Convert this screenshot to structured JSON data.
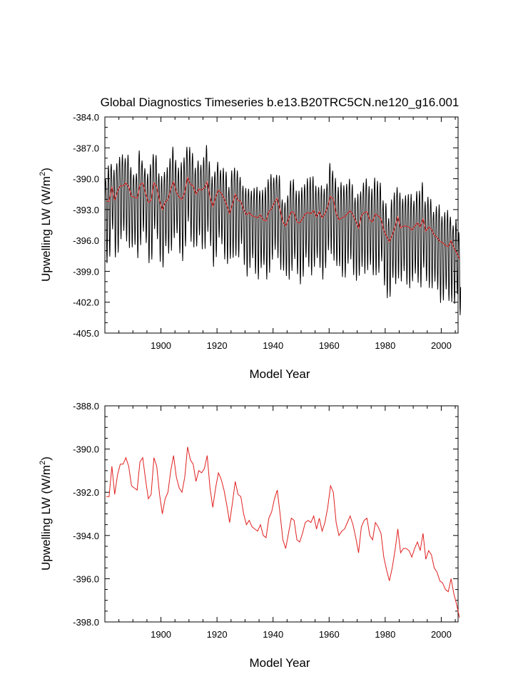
{
  "title": "Global Diagnostics Timeseries b.e13.B20TRC5CN.ne120_g16.001",
  "chart_data": [
    {
      "type": "line",
      "xlabel": "Model Year",
      "ylabel": "Upwelling LW (W/m",
      "ylabel_sup": "2",
      "ylabel_close": ")",
      "xlim": [
        1880,
        2006
      ],
      "ylim": [
        -405.0,
        -384.0
      ],
      "xticks": [
        1900,
        1920,
        1940,
        1960,
        1980,
        2000
      ],
      "yticks": [
        "-405.0",
        "-402.0",
        "-399.0",
        "-396.0",
        "-393.0",
        "-390.0",
        "-387.0",
        "-384.0"
      ],
      "yticks_num": [
        -405,
        -402,
        -399,
        -396,
        -393,
        -390,
        -387,
        -384
      ],
      "series": [
        {
          "kind": "monthly",
          "color": "#000000",
          "annual_mean_ref": "annual",
          "amplitude_high": 3.2,
          "amplitude_low": 5.0
        },
        {
          "kind": "annual",
          "color": "#e0201f"
        }
      ]
    },
    {
      "type": "line",
      "xlabel": "Model Year",
      "ylabel": "Upwelling LW (W/m",
      "ylabel_sup": "2",
      "ylabel_close": ")",
      "xlim": [
        1880,
        2006
      ],
      "ylim": [
        -398.0,
        -388.0
      ],
      "xticks": [
        1900,
        1920,
        1940,
        1960,
        1980,
        2000
      ],
      "yticks": [
        "-398.0",
        "-396.0",
        "-394.0",
        "-392.0",
        "-390.0",
        "-388.0"
      ],
      "yticks_num": [
        -398,
        -396,
        -394,
        -392,
        -390,
        -388
      ],
      "series": [
        {
          "kind": "annual",
          "color": "#e0201f"
        }
      ]
    }
  ],
  "annual": {
    "years_start": 1880,
    "values": [
      -392.2,
      -392.2,
      -390.8,
      -392.1,
      -391.2,
      -390.7,
      -390.7,
      -390.4,
      -390.8,
      -391.7,
      -391.8,
      -391.9,
      -390.6,
      -390.4,
      -391.4,
      -392.3,
      -392.1,
      -390.4,
      -390.8,
      -392.1,
      -393.0,
      -392.3,
      -392.0,
      -391.0,
      -390.3,
      -391.3,
      -391.8,
      -392.0,
      -391.3,
      -389.9,
      -390.5,
      -390.7,
      -391.5,
      -391.0,
      -391.1,
      -390.9,
      -390.3,
      -391.8,
      -392.7,
      -391.8,
      -391.1,
      -391.4,
      -391.9,
      -392.6,
      -393.4,
      -392.5,
      -391.5,
      -392.1,
      -392.2,
      -393.0,
      -393.5,
      -393.3,
      -393.6,
      -393.7,
      -393.8,
      -393.5,
      -394.0,
      -394.1,
      -393.2,
      -392.9,
      -392.3,
      -391.9,
      -393.0,
      -394.2,
      -394.6,
      -393.9,
      -393.2,
      -393.3,
      -394.2,
      -394.3,
      -393.9,
      -393.4,
      -393.3,
      -393.4,
      -393.1,
      -393.7,
      -393.2,
      -393.8,
      -393.4,
      -392.7,
      -391.7,
      -392.0,
      -393.4,
      -394.0,
      -393.8,
      -393.7,
      -393.4,
      -393.1,
      -393.5,
      -394.1,
      -394.8,
      -393.6,
      -393.3,
      -393.2,
      -394.0,
      -394.2,
      -393.4,
      -393.6,
      -393.9,
      -395.0,
      -395.6,
      -396.1,
      -395.5,
      -394.7,
      -393.7,
      -394.8,
      -394.6,
      -394.6,
      -394.7,
      -395.0,
      -394.6,
      -394.3,
      -394.7,
      -393.9,
      -395.1,
      -394.7,
      -394.9,
      -395.5,
      -395.7,
      -396.1,
      -396.2,
      -396.5,
      -396.6,
      -396.0,
      -396.7,
      -397.2,
      -397.8
    ]
  }
}
